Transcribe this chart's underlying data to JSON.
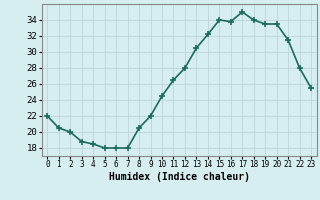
{
  "x": [
    0,
    1,
    2,
    3,
    4,
    5,
    6,
    7,
    8,
    9,
    10,
    11,
    12,
    13,
    14,
    15,
    16,
    17,
    18,
    19,
    20,
    21,
    22,
    23
  ],
  "y": [
    22,
    20.5,
    20,
    18.8,
    18.5,
    18,
    18,
    18,
    20.5,
    22,
    24.5,
    26.5,
    28,
    30.5,
    32.2,
    34,
    33.8,
    35,
    34,
    33.5,
    33.5,
    31.5,
    28,
    25.5
  ],
  "xlabel": "Humidex (Indice chaleur)",
  "ylabel": "",
  "xlim": [
    -0.5,
    23.5
  ],
  "ylim": [
    17,
    36
  ],
  "yticks": [
    18,
    20,
    22,
    24,
    26,
    28,
    30,
    32,
    34
  ],
  "xtick_labels": [
    "0",
    "1",
    "2",
    "3",
    "4",
    "5",
    "6",
    "7",
    "8",
    "9",
    "10",
    "11",
    "12",
    "13",
    "14",
    "15",
    "16",
    "17",
    "18",
    "19",
    "20",
    "21",
    "22",
    "23"
  ],
  "bg_color": "#d6eef0",
  "grid_color": "#c0d8dc",
  "line_color": "#1a6b5a",
  "marker": "+",
  "line_width": 1.2,
  "marker_size": 5
}
